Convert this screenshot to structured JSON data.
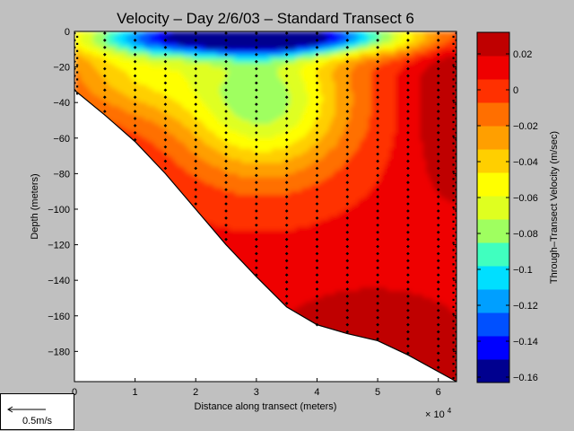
{
  "chart_data": {
    "type": "contour",
    "title": "Velocity – Day 2/6/03 – Standard Transect 6",
    "xlabel": "Distance along transect (meters)",
    "x_exponent_label": "× 10",
    "x_exponent": "4",
    "ylabel": "Depth (meters)",
    "colorbar_label": "Through–Transect Velocity (m/sec)",
    "xlim": [
      0,
      6.3
    ],
    "ylim": [
      -197,
      0
    ],
    "x_ticks": [
      0,
      1,
      2,
      3,
      4,
      5,
      6
    ],
    "y_ticks": [
      0,
      -20,
      -40,
      -60,
      -80,
      -100,
      -120,
      -140,
      -160,
      -180
    ],
    "x_tick_labels": [
      "0",
      "1",
      "2",
      "3",
      "4",
      "5",
      "6"
    ],
    "y_tick_labels": [
      "0",
      "−20",
      "−40",
      "−60",
      "−80",
      "−100",
      "−120",
      "−140",
      "−160",
      "−180"
    ],
    "clim": [
      -0.163,
      0.032
    ],
    "colorbar_ticks": [
      0.02,
      0,
      -0.02,
      -0.04,
      -0.06,
      -0.08,
      -0.1,
      -0.12,
      -0.14,
      -0.16
    ],
    "colorbar_tick_labels": [
      "0.02",
      "0",
      "−0.02",
      "−0.04",
      "−0.06",
      "−0.08",
      "−0.1",
      "−0.12",
      "−0.14",
      "−0.16"
    ],
    "colors": [
      "#00008f",
      "#0000ff",
      "#0050ff",
      "#009fff",
      "#00dfff",
      "#40ffbf",
      "#9fff60",
      "#dfff20",
      "#ffff00",
      "#ffcf00",
      "#ff9f00",
      "#ff6f00",
      "#ff3000",
      "#ef0000",
      "#bf0000"
    ],
    "bottom_profile": [
      [
        0,
        -33
      ],
      [
        0.5,
        -47
      ],
      [
        1,
        -62
      ],
      [
        1.5,
        -80
      ],
      [
        2,
        -100
      ],
      [
        2.5,
        -120
      ],
      [
        3,
        -138
      ],
      [
        3.5,
        -155
      ],
      [
        4,
        -165
      ],
      [
        4.5,
        -170
      ],
      [
        5,
        -174
      ],
      [
        5.5,
        -182
      ],
      [
        6.3,
        -197
      ]
    ],
    "stations": [
      0,
      0.5,
      1,
      1.5,
      2,
      2.5,
      3,
      3.5,
      4,
      4.5,
      5,
      5.5,
      6,
      6.3
    ],
    "scale_arrow_label": "0.5m/s"
  }
}
